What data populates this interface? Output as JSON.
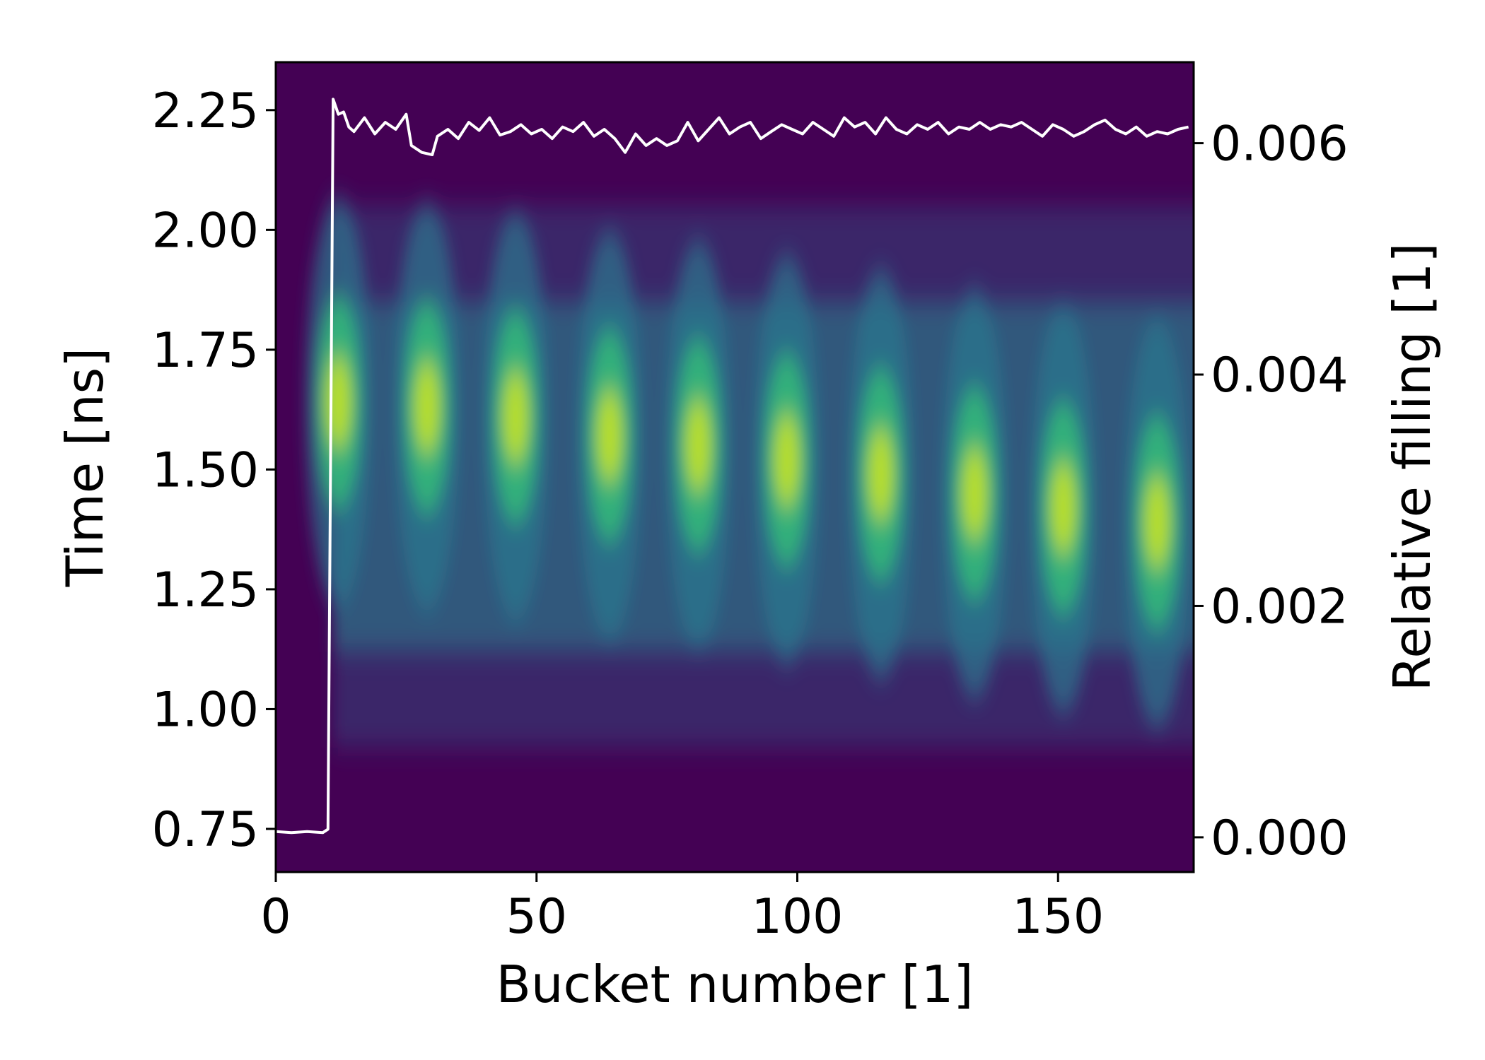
{
  "chart_data": {
    "type": "heatmap",
    "title": "",
    "xlabel": "Bucket number [1]",
    "ylabel": "Time [ns]",
    "y2label": "Relative filling [1]",
    "xlim": [
      0,
      176
    ],
    "ylim": [
      0.66,
      2.35
    ],
    "y2lim": [
      -0.0003,
      0.0067
    ],
    "xticks": [
      "0",
      "50",
      "100",
      "150"
    ],
    "xtick_values": [
      0,
      50,
      100,
      150
    ],
    "yticks": [
      "0.75",
      "1.00",
      "1.25",
      "1.50",
      "1.75",
      "2.00",
      "2.25"
    ],
    "ytick_values": [
      0.75,
      1.0,
      1.25,
      1.5,
      1.75,
      2.0,
      2.25
    ],
    "y2ticks": [
      "0.000",
      "0.002",
      "0.004",
      "0.006"
    ],
    "y2tick_values": [
      0.0,
      0.002,
      0.004,
      0.006
    ],
    "colormap": "viridis",
    "background_color": "#440154",
    "line_color": "#ffffff",
    "heatmap": {
      "filled_from_bucket": 11,
      "peaks": [
        {
          "bucket": 12,
          "time": 1.64
        },
        {
          "bucket": 29,
          "time": 1.63
        },
        {
          "bucket": 46,
          "time": 1.61
        },
        {
          "bucket": 64,
          "time": 1.57
        },
        {
          "bucket": 81,
          "time": 1.55
        },
        {
          "bucket": 98,
          "time": 1.52
        },
        {
          "bucket": 116,
          "time": 1.49
        },
        {
          "bucket": 134,
          "time": 1.45
        },
        {
          "bucket": 151,
          "time": 1.42
        },
        {
          "bucket": 169,
          "time": 1.39
        }
      ]
    },
    "series": [
      {
        "x": [
          0,
          3,
          6,
          9,
          10,
          11,
          12,
          13,
          14,
          15,
          17,
          19,
          21,
          23,
          25,
          26,
          28,
          30,
          31,
          33,
          35,
          37,
          39,
          41,
          43,
          45,
          47,
          49,
          51,
          53,
          55,
          57,
          59,
          61,
          63,
          65,
          67,
          69,
          71,
          73,
          75,
          77,
          79,
          81,
          83,
          85,
          87,
          89,
          91,
          93,
          95,
          97,
          99,
          101,
          103,
          105,
          107,
          109,
          111,
          113,
          115,
          117,
          119,
          121,
          123,
          125,
          127,
          129,
          131,
          133,
          135,
          137,
          139,
          141,
          143,
          145,
          147,
          149,
          151,
          153,
          155,
          157,
          159,
          161,
          163,
          165,
          167,
          169,
          171,
          173,
          175
        ],
        "y": [
          5e-05,
          4e-05,
          5e-05,
          4e-05,
          7e-05,
          0.00638,
          0.00625,
          0.00627,
          0.00614,
          0.0061,
          0.00622,
          0.00608,
          0.00618,
          0.00612,
          0.00625,
          0.00598,
          0.00592,
          0.0059,
          0.00606,
          0.00612,
          0.00604,
          0.00618,
          0.00611,
          0.00622,
          0.00607,
          0.0061,
          0.00616,
          0.00608,
          0.00612,
          0.00604,
          0.00614,
          0.0061,
          0.00618,
          0.00606,
          0.00612,
          0.00604,
          0.00592,
          0.00608,
          0.00598,
          0.00604,
          0.00598,
          0.00602,
          0.00618,
          0.00602,
          0.00612,
          0.00622,
          0.00608,
          0.00614,
          0.00618,
          0.00604,
          0.0061,
          0.00616,
          0.00612,
          0.00608,
          0.00618,
          0.00612,
          0.00606,
          0.00622,
          0.00614,
          0.00618,
          0.00608,
          0.00622,
          0.00612,
          0.00608,
          0.00616,
          0.00612,
          0.00618,
          0.00608,
          0.00614,
          0.00612,
          0.00618,
          0.00612,
          0.00616,
          0.00614,
          0.00618,
          0.00612,
          0.00606,
          0.00616,
          0.00612,
          0.00606,
          0.0061,
          0.00616,
          0.0062,
          0.00612,
          0.00608,
          0.00614,
          0.00606,
          0.0061,
          0.00608,
          0.00612,
          0.00614
        ]
      }
    ]
  }
}
